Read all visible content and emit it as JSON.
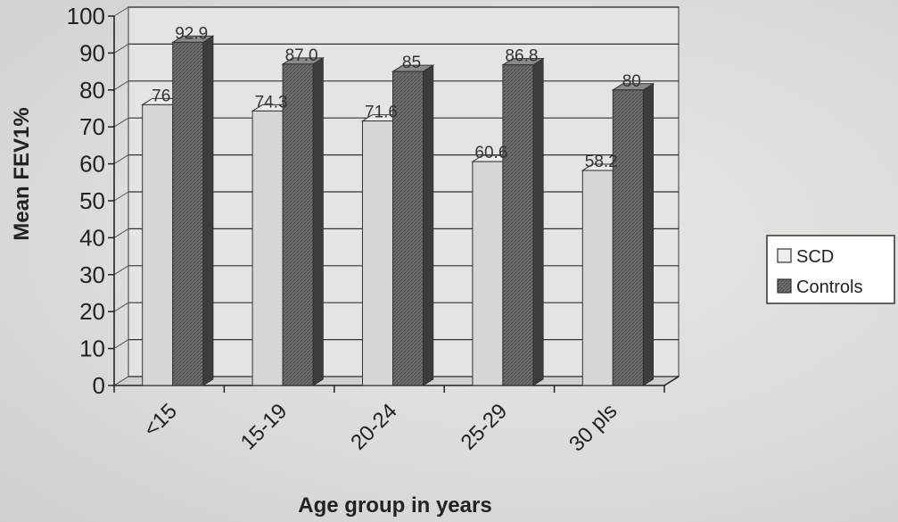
{
  "chart_data": {
    "type": "bar",
    "style": "3d-clustered-column",
    "categories": [
      "<15",
      "15-19",
      "20-24",
      "25-29",
      "30 pls"
    ],
    "series": [
      {
        "name": "SCD",
        "values": [
          76,
          74.3,
          71.6,
          60.6,
          58.2
        ],
        "labels": [
          "76",
          "74.3",
          "71.6",
          "60.6",
          "58.2"
        ],
        "color": "#d4d4d1"
      },
      {
        "name": "Controls",
        "values": [
          92.9,
          87.0,
          85,
          86.8,
          80
        ],
        "labels": [
          "92.9",
          "87.0",
          "85",
          "86.8",
          "80"
        ],
        "color": "#6e6e6c"
      }
    ],
    "xlabel": "Age group in years",
    "ylabel": "Mean FEV1%",
    "ylim": [
      0,
      100
    ],
    "yticks": [
      0,
      10,
      20,
      30,
      40,
      50,
      60,
      70,
      80,
      90,
      100
    ],
    "grid": true,
    "legend_position": "right"
  }
}
